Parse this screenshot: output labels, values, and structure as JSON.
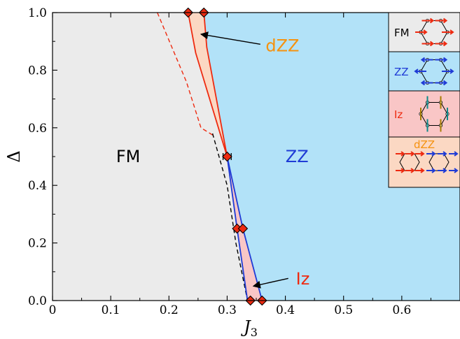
{
  "chart_data": {
    "type": "area",
    "title": "",
    "xlabel": "J",
    "xlabel_sub": "3",
    "ylabel": "Δ",
    "xlim": [
      0,
      0.7
    ],
    "ylim": [
      0,
      1.0
    ],
    "x_ticks": [
      "0",
      "0.1",
      "0.2",
      "0.3",
      "0.4",
      "0.5",
      "0.6"
    ],
    "y_ticks": [
      "0.0",
      "0.2",
      "0.4",
      "0.6",
      "0.8",
      "1.0"
    ],
    "grid": false,
    "colors": {
      "FM": "#ebebeb",
      "ZZ": "#b2e2f8",
      "Iz": "#f9c6c6",
      "dZZ": "#fbd8c3",
      "red_line": "#ee2a10",
      "blue_line": "#1f3bd6",
      "marker": "#ee2a10",
      "dZZ_text": "#f5920f",
      "Iz_text": "#ee2a10",
      "ZZ_text": "#1f3bd6",
      "FM_text": "#000000"
    },
    "regions": [
      {
        "name": "FM",
        "label": "FM",
        "label_pos": [
          0.13,
          0.5
        ]
      },
      {
        "name": "ZZ",
        "label": "ZZ",
        "label_pos": [
          0.42,
          0.5
        ]
      },
      {
        "name": "dZZ",
        "label": "dZZ",
        "annotation_text_pos": [
          0.395,
          0.885
        ],
        "arrow_to": [
          0.255,
          0.925
        ]
      },
      {
        "name": "Iz",
        "label": "Iz",
        "annotation_text_pos": [
          0.43,
          0.075
        ],
        "arrow_to": [
          0.345,
          0.05
        ]
      }
    ],
    "boundaries": {
      "red_left": [
        [
          0.233,
          1.0
        ],
        [
          0.246,
          0.86
        ],
        [
          0.3,
          0.5
        ]
      ],
      "red_right": [
        [
          0.26,
          1.0
        ],
        [
          0.265,
          0.88
        ],
        [
          0.3,
          0.5
        ]
      ],
      "blue_left": [
        [
          0.3,
          0.5
        ],
        [
          0.317,
          0.25
        ],
        [
          0.335,
          0.0
        ]
      ],
      "blue_right": [
        [
          0.3,
          0.5
        ],
        [
          0.327,
          0.25
        ],
        [
          0.36,
          0.0
        ]
      ],
      "red_dashed": [
        [
          0.18,
          1.0
        ],
        [
          0.23,
          0.76
        ],
        [
          0.255,
          0.6
        ],
        [
          0.275,
          0.575
        ]
      ],
      "black_dashed": [
        [
          0.275,
          0.58
        ],
        [
          0.3,
          0.4
        ],
        [
          0.315,
          0.2
        ],
        [
          0.335,
          0.0
        ]
      ]
    },
    "markers": [
      {
        "x": 0.233,
        "y": 1.0
      },
      {
        "x": 0.26,
        "y": 1.0
      },
      {
        "x": 0.3,
        "y": 0.5,
        "xerr": 0.007
      },
      {
        "x": 0.317,
        "y": 0.25
      },
      {
        "x": 0.327,
        "y": 0.25
      },
      {
        "x": 0.34,
        "y": 0.0
      },
      {
        "x": 0.36,
        "y": 0.0
      }
    ],
    "legend": {
      "placement": "top-right",
      "entries": [
        {
          "label": "FM",
          "label_color": "#000000",
          "bg": "#ebebeb"
        },
        {
          "label": "ZZ",
          "label_color": "#1f3bd6",
          "bg": "#b2e2f8"
        },
        {
          "label": "Iz",
          "label_color": "#ee2a10",
          "bg": "#f9c6c6"
        },
        {
          "label": "dZZ",
          "label_color": "#f5920f",
          "bg": "#fbd8c3"
        }
      ]
    }
  }
}
